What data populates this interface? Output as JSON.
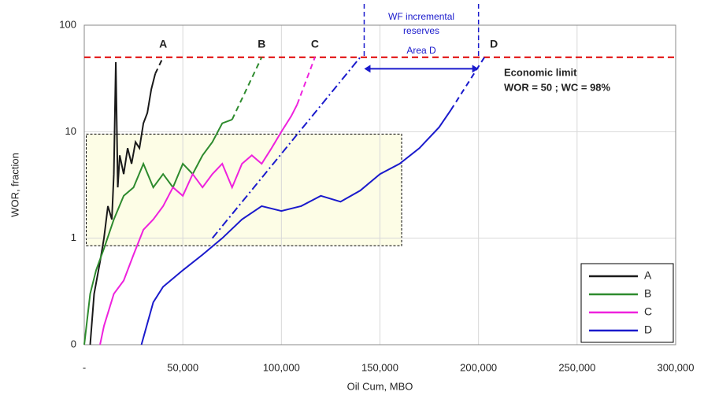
{
  "chart_data": {
    "type": "line",
    "log_y": true,
    "grid": true,
    "x_label": "Oil Cum, MBO",
    "y_label": "WOR, fraction",
    "xlim": [
      0,
      300000
    ],
    "xticks": [
      {
        "value": 0,
        "label": "-"
      },
      {
        "value": 50000,
        "label": "50,000"
      },
      {
        "value": 100000,
        "label": "100,000"
      },
      {
        "value": 150000,
        "label": "150,000"
      },
      {
        "value": 200000,
        "label": "200,000"
      },
      {
        "value": 250000,
        "label": "250,000"
      },
      {
        "value": 300000,
        "label": "300,000"
      }
    ],
    "ylim": [
      0.1,
      100
    ],
    "yticks": [
      {
        "value": 0.1,
        "label": "0"
      },
      1,
      10,
      100
    ],
    "legend": "bottom-right",
    "economic_limit": 50,
    "economic_limit_color": "#e00000",
    "economic_limit_label": "Economic limit",
    "economic_limit_note": "WOR = 50 ; WC = 98%",
    "reserves_label": "WF incremental reserves",
    "area_label": "Area D",
    "series": [
      {
        "name": "A",
        "color": "#1a1a1a",
        "x": [
          3000,
          5000,
          8000,
          10000,
          12000,
          14000,
          15000,
          16000,
          17000,
          18000,
          20000,
          22000,
          24000,
          26000,
          28000,
          30000,
          32000,
          34000,
          36000
        ],
        "values": [
          0.1,
          0.3,
          0.6,
          1,
          2,
          1.5,
          4,
          45,
          3,
          6,
          4,
          7,
          5,
          8,
          7,
          12,
          15,
          25,
          35
        ]
      },
      {
        "name": "B",
        "color": "#2e8b2e",
        "x": [
          0,
          3000,
          6000,
          10000,
          15000,
          20000,
          25000,
          30000,
          35000,
          40000,
          45000,
          50000,
          55000,
          60000,
          65000,
          70000,
          75000
        ],
        "values": [
          0.1,
          0.3,
          0.5,
          0.8,
          1.5,
          2.5,
          3,
          5,
          3,
          4,
          3,
          5,
          4,
          6,
          8,
          12,
          13
        ]
      },
      {
        "name": "C",
        "color": "#ee22dd",
        "x": [
          8000,
          10000,
          15000,
          20000,
          25000,
          30000,
          35000,
          40000,
          45000,
          50000,
          55000,
          60000,
          65000,
          70000,
          75000,
          80000,
          85000,
          90000,
          95000,
          100000,
          105000,
          108000
        ],
        "values": [
          0.1,
          0.15,
          0.3,
          0.4,
          0.7,
          1.2,
          1.5,
          2,
          3,
          2.5,
          4,
          3,
          4,
          5,
          3,
          5,
          6,
          5,
          7,
          10,
          14,
          18
        ]
      },
      {
        "name": "D",
        "color": "#1a1acc",
        "x": [
          29000,
          35000,
          40000,
          50000,
          60000,
          70000,
          80000,
          90000,
          100000,
          110000,
          120000,
          130000,
          140000,
          150000,
          160000,
          170000,
          180000,
          186000
        ],
        "values": [
          0.1,
          0.25,
          0.35,
          0.5,
          0.7,
          1,
          1.5,
          2,
          1.8,
          2,
          2.5,
          2.2,
          2.8,
          4,
          5,
          7,
          11,
          16
        ]
      }
    ]
  }
}
